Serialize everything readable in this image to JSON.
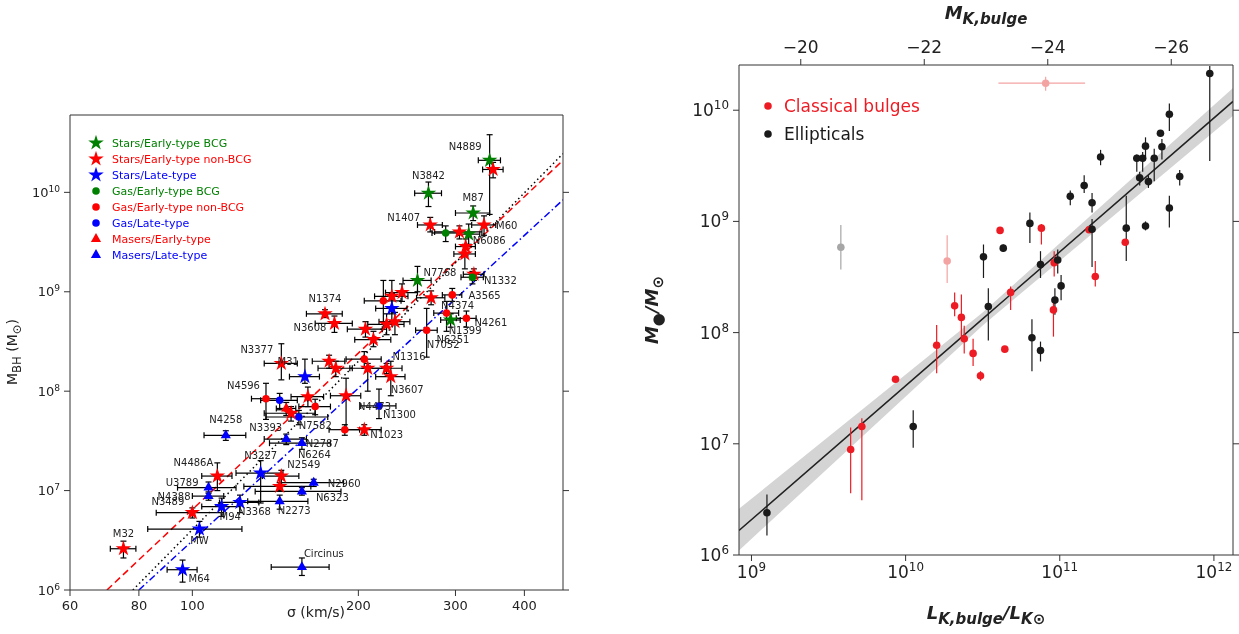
{
  "chart_data": [
    {
      "type": "scatter",
      "xlabel": "σ (km/s)",
      "ylabel": "M$_{BH}$ (M$_{⊙}$)",
      "log": "xy",
      "xlim": [
        60,
        470
      ],
      "xticks": [
        60,
        80,
        100,
        200,
        300,
        400
      ],
      "ylim": [
        1000000.0,
        60000000000.0
      ],
      "yticks": [
        {
          "value": 1000000.0,
          "label": "10$^{6}$"
        },
        {
          "value": 10000000.0,
          "label": "10$^{7}$"
        },
        {
          "value": 100000000.0,
          "label": "10$^{8}$"
        },
        {
          "value": 1000000000.0,
          "label": "10$^{9}$"
        },
        {
          "value": 10000000000.0,
          "label": "10$^{10}$"
        }
      ],
      "legend": "top left",
      "series": [
        {
          "name": "Stars/Early-type BCG",
          "color": "#008000",
          "marker": "star",
          "x": [
            346,
            268,
            323,
            317,
            256,
            294
          ],
          "values": [
            21000000000.0,
            9800000000.0,
            6200000000.0,
            3800000000.0,
            1300000000.0,
            520000000.0
          ],
          "xerrors": [
            16,
            15,
            23,
            15,
            15,
            12
          ],
          "errors": [
            [
              6000000000.0,
              38000000000.0
            ],
            [
              7200000000.0,
              12700000000.0
            ],
            [
              5200000000.0,
              7300000000.0
            ],
            [
              3000000000.0,
              4800000000.0
            ],
            [
              1000000000.0,
              1800000000.0
            ],
            [
              440000000.0,
              600000000.0
            ]
          ]
        },
        {
          "name": "Stars/Early-type non-BCG",
          "color": "#ff0000",
          "marker": "star",
          "x": [
            351,
            270,
            338,
            305,
            313,
            312,
            324,
            240,
            230,
            271,
            174,
            181,
            225,
            233,
            206,
            213,
            145,
            177,
            182,
            225,
            208,
            229,
            162,
            190,
            151,
            205,
            111,
            145,
            144,
            100,
            75
          ],
          "values": [
            17000000000.0,
            4700000000.0,
            4700000000.0,
            4000000000.0,
            2850000000.0,
            2400000000.0,
            1500000000.0,
            980000000.0,
            900000000.0,
            870000000.0,
            600000000.0,
            480000000.0,
            470000000.0,
            500000000.0,
            420000000.0,
            330000000.0,
            190000000.0,
            200000000.0,
            170000000.0,
            170000000.0,
            170000000.0,
            140000000.0,
            88000000.0,
            90000000.0,
            60000000.0,
            41000000.0,
            14000000.0,
            14000000.0,
            11000000.0,
            6000000.0,
            2600000.0
          ],
          "xerrors": [
            15,
            14,
            17,
            30,
            13,
            14,
            14,
            16,
            16,
            16,
            13,
            14,
            17,
            15,
            15,
            16,
            10,
            12,
            13,
            15,
            15,
            14,
            11,
            12,
            16,
            15,
            7,
            11,
            20,
            14,
            4
          ],
          "errors": [
            [
              14000000000.0,
              20000000000.0
            ],
            [
              4000000000.0,
              5600000000.0
            ],
            [
              3700000000.0,
              5800000000.0
            ],
            [
              3400000000.0,
              4600000000.0
            ],
            [
              2300000000.0,
              3400000000.0
            ],
            [
              1700000000.0,
              3000000000.0
            ],
            [
              1300000000.0,
              1700000000.0
            ],
            [
              800000000.0,
              1200000000.0
            ],
            [
              600000000.0,
              1300000000.0
            ],
            [
              740000000.0,
              1020000000.0
            ],
            [
              550000000.0,
              660000000.0
            ],
            [
              390000000.0,
              570000000.0
            ],
            [
              370000000.0,
              600000000.0
            ],
            [
              370000000.0,
              620000000.0
            ],
            [
              350000000.0,
              500000000.0
            ],
            [
              280000000.0,
              400000000.0
            ],
            [
              130000000.0,
              300000000.0
            ],
            [
              170000000.0,
              230000000.0
            ],
            [
              140000000.0,
              200000000.0
            ],
            [
              150000000.0,
              190000000.0
            ],
            [
              100000000.0,
              190000000.0
            ],
            [
              90000000.0,
              200000000.0
            ],
            [
              70000000.0,
              110000000.0
            ],
            [
              41000000.0,
              135000000.0
            ],
            [
              50000000.0,
              70000000.0
            ],
            [
              36000000.0,
              46000000.0
            ],
            [
              10000000.0,
              19000000.0
            ],
            [
              11000000.0,
              16000000.0
            ],
            [
              10000000.0,
              12000000.0
            ],
            [
              5300000.0,
              6700000.0
            ],
            [
              2100000.0,
              3100000.0
            ]
          ]
        },
        {
          "name": "Stars/Late-type",
          "color": "#0000ff",
          "marker": "star",
          "x": [
            230,
            160,
            133,
            122,
            113,
            103,
            96
          ],
          "values": [
            680000000.0,
            140000000.0,
            15000000.0,
            7600000.0,
            6900000.0,
            4100000.0,
            1600000.0
          ],
          "xerrors": [
            15,
            10,
            13,
            10,
            9,
            20,
            6
          ],
          "errors": [
            [
              480000000.0,
              960000000.0
            ],
            [
              120000000.0,
              210000000.0
            ],
            [
              7500000.0,
              20000000.0
            ],
            [
              6000000.0,
              9000000.0
            ],
            [
              5500000.0,
              8400000.0
            ],
            [
              3400000.0,
              4900000.0
            ],
            [
              1200000.0,
              2000000.0
            ]
          ]
        },
        {
          "name": "Gas/Early-type BCG",
          "color": "#008000",
          "marker": "circle",
          "x": [
            288,
            322
          ],
          "values": [
            3900000000.0,
            1400000000.0
          ],
          "xerrors": [
            16,
            15
          ],
          "errors": [
            [
              3200000000.0,
              4600000000.0
            ],
            [
              1200000000.0,
              1600000000.0
            ]
          ]
        },
        {
          "name": "Gas/Early-type non-BCG",
          "color": "#ff0000",
          "marker": "circle",
          "x": [
            222,
            296,
            289,
            314,
            266,
            205,
            136,
            167,
            189
          ],
          "values": [
            810000000.0,
            930000000.0,
            610000000.0,
            540000000.0,
            410000000.0,
            210000000.0,
            84000000.0,
            70000000.0,
            41000000.0
          ],
          "xerrors": [
            17,
            12,
            15,
            13,
            12,
            15,
            8,
            11,
            12
          ],
          "errors": [
            [
              420000000.0,
              1300000000.0
            ],
            [
              800000000.0,
              1080000000.0
            ],
            [
              400000000.0,
              800000000.0
            ],
            [
              440000000.0,
              640000000.0
            ],
            [
              220000000.0,
              680000000.0
            ],
            [
              170000000.0,
              250000000.0
            ],
            [
              52000000.0,
              120000000.0
            ],
            [
              58000000.0,
              83000000.0
            ],
            [
              36000000.0,
              46000000.0
            ]
          ]
        },
        {
          "name": "Gas/Late-type",
          "color": "#0000ff",
          "marker": "circle",
          "x": [
            144,
            156,
            218
          ],
          "values": [
            81000000.0,
            55000000.0,
            71000000.0
          ],
          "xerrors": [
            11,
            20,
            16
          ],
          "errors": [
            [
              65000000.0,
              95000000.0
            ],
            [
              46000000.0,
              64000000.0
            ],
            [
              53000000.0,
              105000000.0
            ]
          ]
        },
        {
          "name": "Masers/Early-type",
          "color": "#ff0000",
          "marker": "triangle",
          "x": [
            148
          ],
          "values": [
            67000000.0
          ],
          "xerrors": [
            6
          ],
          "errors": [
            [
              57000000.0,
              77000000.0
            ]
          ]
        },
        {
          "name": "Masers/Late-type",
          "color": "#0000ff",
          "marker": "triangle",
          "x": [
            115,
            148,
            158,
            166,
            107,
            158,
            107,
            144,
            158
          ],
          "values": [
            36000000.0,
            33000000.0,
            30000000.0,
            12000000.0,
            10700000.0,
            9800000.0,
            8800000.0,
            7800000.0,
            1700000.0
          ],
          "xerrors": [
            10,
            13,
            20,
            22,
            13,
            28,
            7,
            18,
            19
          ],
          "errors": [
            [
              32000000.0,
              40000000.0
            ],
            [
              29000000.0,
              37000000.0
            ],
            [
              26000000.0,
              34000000.0
            ],
            [
              11000000.0,
              13000000.0
            ],
            [
              9400000.0,
              12200000.0
            ],
            [
              9000000.0,
              10700000.0
            ],
            [
              8000000.0,
              9700000.0
            ],
            [
              6500000.0,
              9000000.0
            ],
            [
              1400000.0,
              2100000.0
            ]
          ]
        },
        {
          "type": "line",
          "color": "#ff0000",
          "line_style": "dashed",
          "x": [
            70,
            470
          ],
          "values": [
            1000000.0,
            21000000000.0
          ]
        },
        {
          "type": "line",
          "color": "#000000",
          "line_style": "dotted",
          "x": [
            78,
            470
          ],
          "values": [
            1000000.0,
            24500000000.0
          ]
        },
        {
          "type": "line",
          "color": "#0000ff",
          "line_style": "dashdot",
          "x": [
            80,
            470
          ],
          "values": [
            1000000.0,
            8400000000.0
          ]
        }
      ],
      "annotations": [
        {
          "text": "N4889",
          "x": 346,
          "y": 21000000000.0
        },
        {
          "text": "N3842",
          "x": 268,
          "y": 9800000000.0
        },
        {
          "text": "M87",
          "x": 323,
          "y": 6200000000.0
        },
        {
          "text": "N1407",
          "x": 270,
          "y": 4700000000.0
        },
        {
          "text": "M60",
          "x": 338,
          "y": 4700000000.0
        },
        {
          "text": "N6086",
          "x": 317,
          "y": 3800000000.0
        },
        {
          "text": "N7768",
          "x": 256,
          "y": 1300000000.0
        },
        {
          "text": "N1332",
          "x": 324,
          "y": 1500000000.0
        },
        {
          "text": "A3565",
          "x": 322,
          "y": 1400000000.0
        },
        {
          "text": "N4374",
          "x": 271,
          "y": 870000000.0
        },
        {
          "text": "N1374",
          "x": 174,
          "y": 600000000.0
        },
        {
          "text": "N3608",
          "x": 181,
          "y": 480000000.0
        },
        {
          "text": "N4261",
          "x": 314,
          "y": 540000000.0
        },
        {
          "text": "N1399",
          "x": 294,
          "y": 520000000.0
        },
        {
          "text": "N6251",
          "x": 289,
          "y": 610000000.0
        },
        {
          "text": "N7052",
          "x": 266,
          "y": 410000000.0
        },
        {
          "text": "N3377",
          "x": 145,
          "y": 190000000.0
        },
        {
          "text": "M31",
          "x": 160,
          "y": 140000000.0
        },
        {
          "text": "N1316",
          "x": 225,
          "y": 170000000.0
        },
        {
          "text": "N3607",
          "x": 229,
          "y": 140000000.0
        },
        {
          "text": "N4596",
          "x": 136,
          "y": 84000000.0
        },
        {
          "text": "N4473",
          "x": 190,
          "y": 90000000.0
        },
        {
          "text": "N1300",
          "x": 218,
          "y": 71000000.0
        },
        {
          "text": "N7582",
          "x": 156,
          "y": 55000000.0
        },
        {
          "text": "N2787",
          "x": 189,
          "y": 41000000.0
        },
        {
          "text": "N1023",
          "x": 205,
          "y": 41000000.0
        },
        {
          "text": "N4258",
          "x": 115,
          "y": 36000000.0
        },
        {
          "text": "N3393",
          "x": 148,
          "y": 33000000.0
        },
        {
          "text": "N6264",
          "x": 158,
          "y": 30000000.0
        },
        {
          "text": "N3227",
          "x": 133,
          "y": 15000000.0
        },
        {
          "text": "N4486A",
          "x": 111,
          "y": 14000000.0
        },
        {
          "text": "N2549",
          "x": 145,
          "y": 14000000.0
        },
        {
          "text": "N2960",
          "x": 166,
          "y": 12000000.0
        },
        {
          "text": "U3789",
          "x": 107,
          "y": 10700000.0
        },
        {
          "text": "N6323",
          "x": 158,
          "y": 9800000.0
        },
        {
          "text": "N4388",
          "x": 107,
          "y": 8800000.0
        },
        {
          "text": "N3489",
          "x": 100,
          "y": 6000000.0
        },
        {
          "text": "N3368",
          "x": 122,
          "y": 7600000.0
        },
        {
          "text": "M94",
          "x": 113,
          "y": 6900000.0
        },
        {
          "text": "N2273",
          "x": 144,
          "y": 7800000.0
        },
        {
          "text": "MW",
          "x": 103,
          "y": 4100000.0
        },
        {
          "text": "M32",
          "x": 75,
          "y": 2600000.0
        },
        {
          "text": "M64",
          "x": 96,
          "y": 1600000.0
        },
        {
          "text": "Circinus",
          "x": 158,
          "y": 1700000.0
        }
      ]
    },
    {
      "type": "scatter",
      "xlabel": "L$_{K,bulge}$/L$_{K⊙}$",
      "x2label": "M$_{K,bulge}$",
      "ylabel": "M$_{●}$/M$_{⊙}$",
      "log": "xy",
      "xlim": [
        830000000.0,
        1330000000000.0
      ],
      "xticks": [
        {
          "value": 1000000000.0,
          "label": "10$^{9}$"
        },
        {
          "value": 10000000000.0,
          "label": "10$^{10}$"
        },
        {
          "value": 100000000000.0,
          "label": "10$^{11}$"
        },
        {
          "value": 1000000000000.0,
          "label": "10$^{12}$"
        }
      ],
      "x2lim": [
        -19,
        -27
      ],
      "x2ticks": [
        {
          "value": -20,
          "label": "−20"
        },
        {
          "value": -22,
          "label": "−22"
        },
        {
          "value": -24,
          "label": "−24"
        },
        {
          "value": -26,
          "label": "−26"
        }
      ],
      "ylim": [
        1000000.0,
        25500000000.0
      ],
      "yticks": [
        {
          "value": 1000000.0,
          "label": "10$^{6}$"
        },
        {
          "value": 10000000.0,
          "label": "10$^{7}$"
        },
        {
          "value": 100000000.0,
          "label": "10$^{8}$"
        },
        {
          "value": 1000000000.0,
          "label": "10$^{9}$"
        },
        {
          "value": 10000000000.0,
          "label": "10$^{10}$"
        }
      ],
      "legend": "top left",
      "series": [
        {
          "type": "line",
          "color": "#222222",
          "x": [
            830000000.0,
            31600000000.0,
            1330000000000.0
          ],
          "values": [
            1660000.0,
            133000000.0,
            12000000000.0
          ],
          "lower": [
            1100000.0,
            116000000.0,
            8900000000.0
          ],
          "upper": [
            2600000.0,
            152000000.0,
            15800000000.0
          ]
        },
        {
          "color": "#f4a3a3",
          "marker": "circle",
          "x": [
            81000000000.0,
            18600000000.0
          ],
          "values": [
            17500000000.0,
            440000000.0
          ],
          "errors": [
            [
              15000000000.0,
              20000000000.0
            ],
            [
              280000000.0,
              750000000.0
            ]
          ],
          "xerrors": [
            [
              40000000000.0,
              146000000000.0
            ],
            null
          ]
        },
        {
          "color": "#a6a6a6",
          "marker": "circle",
          "x": [
            3800000000.0
          ],
          "values": [
            585000000.0
          ],
          "errors": [
            [
              370000000.0,
              930000000.0
            ]
          ]
        },
        {
          "name": "Classical bulges",
          "color": "#ed1c24",
          "marker": "circle",
          "x": [
            41000000000.0,
            76000000000.0,
            155000000000.0,
            170000000000.0,
            266000000000.0,
            92000000000.0,
            48000000000.0,
            20800000000.0,
            23000000000.0,
            91000000000.0,
            15900000000.0,
            24000000000.0,
            27400000000.0,
            30600000000.0,
            44000000000.0,
            8600000000.0,
            5200000000.0,
            4400000000.0
          ],
          "values": [
            830000000.0,
            870000000.0,
            840000000.0,
            320000000.0,
            650000000.0,
            425000000.0,
            230000000.0,
            174000000.0,
            137000000.0,
            160000000.0,
            77000000.0,
            88000000.0,
            65000000.0,
            41000000.0,
            71000000.0,
            38000000.0,
            14300000.0,
            8900000.0
          ],
          "errors": [
            null,
            [
              620000000.0,
              950000000.0
            ],
            null,
            [
              260000000.0,
              440000000.0
            ],
            null,
            [
              320000000.0,
              540000000.0
            ],
            [
              160000000.0,
              260000000.0
            ],
            [
              140000000.0,
              230000000.0
            ],
            [
              90000000.0,
              220000000.0
            ],
            [
              92000000.0,
              200000000.0
            ],
            [
              43000000.0,
              117000000.0
            ],
            [
              65000000.0,
              115000000.0
            ],
            [
              50000000.0,
              88000000.0
            ],
            [
              37000000.0,
              45000000.0
            ],
            null,
            null,
            [
              3100000.0,
              17000000.0
            ],
            [
              3600000.0,
              14000000.0
            ]
          ]
        },
        {
          "name": "Ellipticals",
          "color": "#1a1a1a",
          "marker": "circle",
          "x": [
            940000000000.0,
            514000000000.0,
            450000000000.0,
            460000000000.0,
            360000000000.0,
            316000000000.0,
            345000000000.0,
            410000000000.0,
            184000000000.0,
            330000000000.0,
            376000000000.0,
            600000000000.0,
            144000000000.0,
            117000000000.0,
            162000000000.0,
            514000000000.0,
            64000000000.0,
            270000000000.0,
            162000000000.0,
            360000000000.0,
            43000000000.0,
            32000000000.0,
            75000000000.0,
            97000000000.0,
            102000000000.0,
            93000000000.0,
            34400000000.0,
            66000000000.0,
            75000000000.0,
            11200000000.0,
            1260000000.0
          ],
          "values": [
            21400000000.0,
            9200000000.0,
            6200000000.0,
            4700000000.0,
            4750000000.0,
            3700000000.0,
            3700000000.0,
            3700000000.0,
            3800000000.0,
            2470000000.0,
            2280000000.0,
            2530000000.0,
            2100000000.0,
            1680000000.0,
            1470000000.0,
            1320000000.0,
            960000000.0,
            870000000.0,
            850000000.0,
            910000000.0,
            575000000.0,
            480000000.0,
            410000000.0,
            450000000.0,
            263000000.0,
            196000000.0,
            172000000.0,
            90000000.0,
            69000000.0,
            14300000.0,
            2400000.0
          ],
          "errors": [
            [
              3500000000.0,
              25000000000.0
            ],
            [
              6500000000.0,
              11500000000.0
            ],
            null,
            [
              3600000000.0,
              5500000000.0
            ],
            [
              3800000000.0,
              5700000000.0
            ],
            [
              2800000000.0,
              4000000000.0
            ],
            [
              2800000000.0,
              4200000000.0
            ],
            [
              2300000000.0,
              4500000000.0
            ],
            [
              3200000000.0,
              4400000000.0
            ],
            [
              2100000000.0,
              2800000000.0
            ],
            [
              2000000000.0,
              2600000000.0
            ],
            [
              2100000000.0,
              2900000000.0
            ],
            [
              1800000000.0,
              2600000000.0
            ],
            [
              1400000000.0,
              1900000000.0
            ],
            [
              1200000000.0,
              1800000000.0
            ],
            [
              880000000.0,
              1700000000.0
            ],
            [
              640000000.0,
              1200000000.0
            ],
            [
              440000000.0,
              1700000000.0
            ],
            [
              390000000.0,
              1050000000.0
            ],
            [
              830000000.0,
              1000000000.0
            ],
            [
              530000000.0,
              620000000.0
            ],
            [
              310000000.0,
              620000000.0
            ],
            [
              310000000.0,
              540000000.0
            ],
            [
              340000000.0,
              560000000.0
            ],
            [
              195000000.0,
              330000000.0
            ],
            [
              145000000.0,
              250000000.0
            ],
            [
              85000000.0,
              250000000.0
            ],
            [
              45000000.0,
              132000000.0
            ],
            [
              55000000.0,
              83000000.0
            ],
            [
              9200000.0,
              20000000.0
            ],
            [
              1500000.0,
              3500000.0
            ]
          ]
        }
      ]
    }
  ]
}
